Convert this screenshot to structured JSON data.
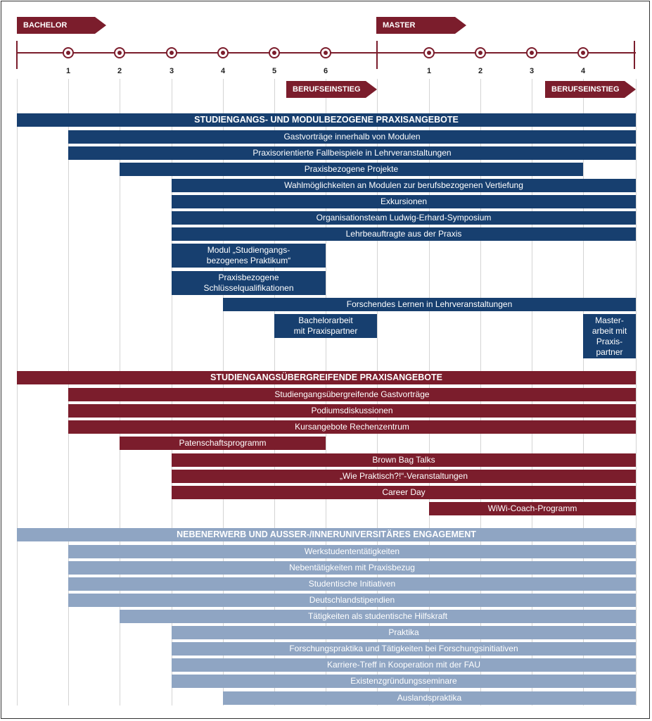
{
  "timeline": {
    "bachelor_label": "BACHELOR",
    "master_label": "MASTER",
    "bachelor_semesters": [
      "1",
      "2",
      "3",
      "4",
      "5",
      "6"
    ],
    "master_semesters": [
      "1",
      "2",
      "3",
      "4"
    ],
    "berufseinstieg_bachelor": "BERUFSEINSTIEG",
    "berufseinstieg_master": "BERUFSEINSTIEG"
  },
  "colors": {
    "dark_red": "#7b1d2c",
    "dark_blue": "#173f6f",
    "light_blue": "#8fa5c3"
  },
  "sections": [
    {
      "header": "STUDIENGANGS- UND MODULBEZOGENE PRAXISANGEBOTE",
      "items": [
        "Gastvorträge innerhalb von Modulen",
        "Praxisorientierte Fallbeispiele in Lehrveranstaltungen",
        "Praxisbezogene Projekte",
        "Wahlmöglichkeiten an Modulen zur berufsbezogenen Vertiefung",
        "Exkursionen",
        "Organisationsteam Ludwig-Erhard-Symposium",
        "Lehrbeauftragte aus der Praxis",
        "Modul „Studiengangs-\nbezogenes Praktikum“",
        "Praxisbezogene\nSchlüsselqualifikationen",
        "Forschendes Lernen in Lehrveranstaltungen",
        "Bachelorarbeit\nmit Praxispartner",
        "Master-\narbeit mit\nPraxis-\npartner"
      ]
    },
    {
      "header": "STUDIENGANGSÜBERGREIFENDE PRAXISANGEBOTE",
      "items": [
        "Studiengangsübergreifende Gastvorträge",
        "Podiumsdiskussionen",
        "Kursangebote Rechenzentrum",
        "Patenschaftsprogramm",
        "Brown Bag Talks",
        "„Wie Praktisch?!“-Veranstaltungen",
        "Career Day",
        "WiWi-Coach-Programm"
      ]
    },
    {
      "header": "NEBENERWERB UND AUSSER-/INNERUNIVERSITÄRES ENGAGEMENT",
      "items": [
        "Werkstudententätigkeiten",
        "Nebentätigkeiten mit Praxisbezug",
        "Studentische Initiativen",
        "Deutschlandstipendien",
        "Tätigkeiten als studentische Hilfskraft",
        "Praktika",
        "Forschungspraktika und Tätigkeiten bei Forschungsinitiativen",
        "Karriere-Treff in Kooperation mit der FAU",
        "Existenzgründungsseminare",
        "Auslandspraktika"
      ]
    }
  ]
}
